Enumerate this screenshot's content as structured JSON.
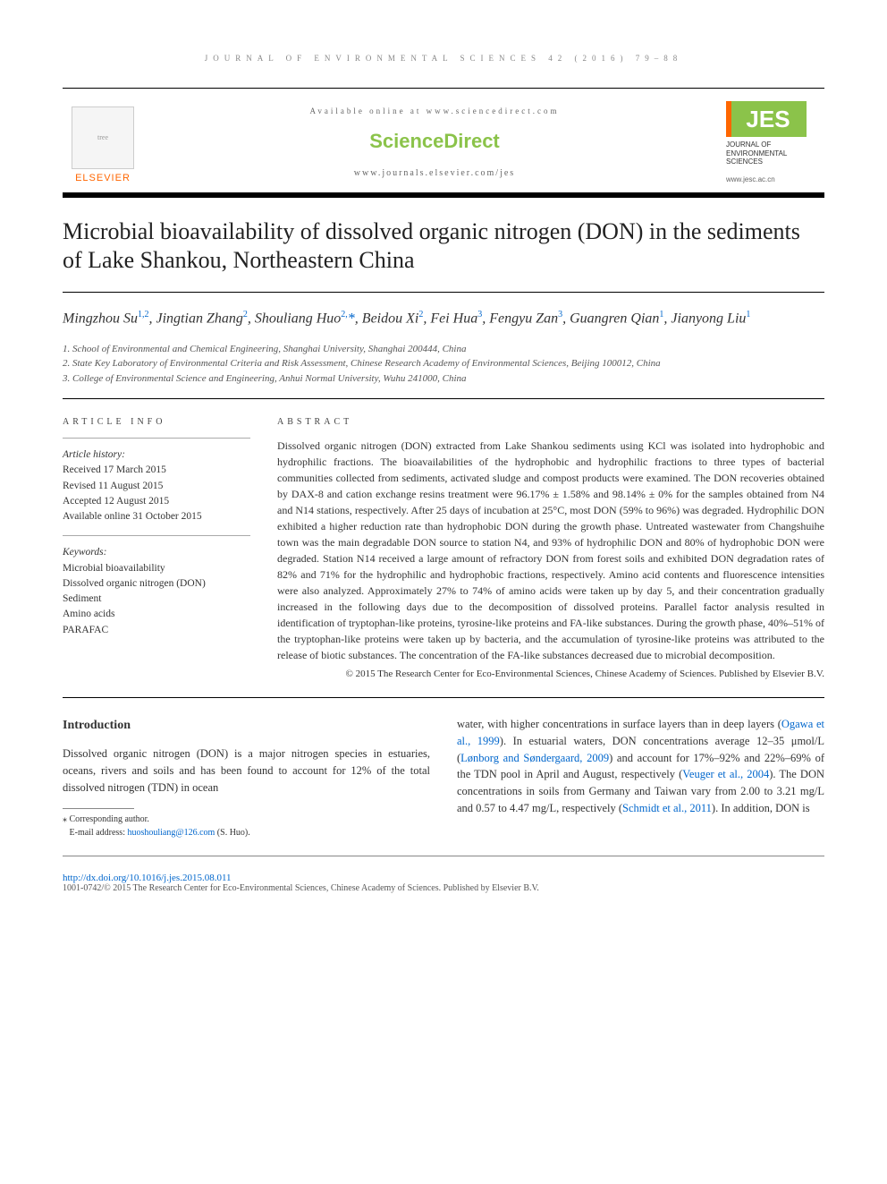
{
  "header": {
    "running_head": "JOURNAL OF ENVIRONMENTAL SCIENCES 42 (2016) 79–88",
    "available_online": "Available online at www.sciencedirect.com",
    "sciencedirect": "ScienceDirect",
    "journal_url": "www.journals.elsevier.com/jes",
    "elsevier_label": "ELSEVIER",
    "jes_label": "JES",
    "jes_subtitle": "JOURNAL OF ENVIRONMENTAL SCIENCES",
    "jes_url": "www.jesc.ac.cn"
  },
  "title": "Microbial bioavailability of dissolved organic nitrogen (DON) in the sediments of Lake Shankou, Northeastern China",
  "authors_html": "Mingzhou Su<sup>1,2</sup>, Jingtian Zhang<sup>2</sup>, Shouliang Huo<sup>2,</sup><span class='corr'>*</span>, Beidou Xi<sup>2</sup>, Fei Hua<sup>3</sup>, Fengyu Zan<sup>3</sup>, Guangren Qian<sup>1</sup>, Jianyong Liu<sup>1</sup>",
  "affiliations": [
    "1. School of Environmental and Chemical Engineering, Shanghai University, Shanghai 200444, China",
    "2. State Key Laboratory of Environmental Criteria and Risk Assessment, Chinese Research Academy of Environmental Sciences, Beijing 100012, China",
    "3. College of Environmental Science and Engineering, Anhui Normal University, Wuhu 241000, China"
  ],
  "article_info": {
    "label": "ARTICLE INFO",
    "history_hdr": "Article history:",
    "history": [
      "Received 17 March 2015",
      "Revised 11 August 2015",
      "Accepted 12 August 2015",
      "Available online 31 October 2015"
    ],
    "keywords_hdr": "Keywords:",
    "keywords": [
      "Microbial bioavailability",
      "Dissolved organic nitrogen (DON)",
      "Sediment",
      "Amino acids",
      "PARAFAC"
    ]
  },
  "abstract": {
    "label": "ABSTRACT",
    "text": "Dissolved organic nitrogen (DON) extracted from Lake Shankou sediments using KCl was isolated into hydrophobic and hydrophilic fractions. The bioavailabilities of the hydrophobic and hydrophilic fractions to three types of bacterial communities collected from sediments, activated sludge and compost products were examined. The DON recoveries obtained by DAX-8 and cation exchange resins treatment were 96.17% ± 1.58% and 98.14% ± 0% for the samples obtained from N4 and N14 stations, respectively. After 25 days of incubation at 25°C, most DON (59% to 96%) was degraded. Hydrophilic DON exhibited a higher reduction rate than hydrophobic DON during the growth phase. Untreated wastewater from Changshuihe town was the main degradable DON source to station N4, and 93% of hydrophilic DON and 80% of hydrophobic DON were degraded. Station N14 received a large amount of refractory DON from forest soils and exhibited DON degradation rates of 82% and 71% for the hydrophilic and hydrophobic fractions, respectively. Amino acid contents and fluorescence intensities were also analyzed. Approximately 27% to 74% of amino acids were taken up by day 5, and their concentration gradually increased in the following days due to the decomposition of dissolved proteins. Parallel factor analysis resulted in identification of tryptophan-like proteins, tyrosine-like proteins and FA-like substances. During the growth phase, 40%–51% of the tryptophan-like proteins were taken up by bacteria, and the accumulation of tyrosine-like proteins was attributed to the release of biotic substances. The concentration of the FA-like substances decreased due to microbial decomposition.",
    "copyright": "© 2015 The Research Center for Eco-Environmental Sciences, Chinese Academy of Sciences. Published by Elsevier B.V."
  },
  "intro": {
    "heading": "Introduction",
    "col1": "Dissolved organic nitrogen (DON) is a major nitrogen species in estuaries, oceans, rivers and soils and has been found to account for 12% of the total dissolved nitrogen (TDN) in ocean",
    "col2_pre": "water, with higher concentrations in surface layers than in deep layers (",
    "ref1": "Ogawa et al., 1999",
    "col2_a": "). In estuarial waters, DON concentrations average 12–35 μmol/L (",
    "ref2": "Lønborg and Søndergaard, 2009",
    "col2_b": ") and account for 17%–92% and 22%–69% of the TDN pool in April and August, respectively (",
    "ref3": "Veuger et al., 2004",
    "col2_c": "). The DON concentrations in soils from Germany and Taiwan vary from 2.00 to 3.21 mg/L and 0.57 to 4.47 mg/L, respectively (",
    "ref4": "Schmidt et al., 2011",
    "col2_d": "). In addition, DON is"
  },
  "footer": {
    "corr_label": "⁎ Corresponding author.",
    "email_label": "E-mail address: ",
    "email": "huoshouliang@126.com",
    "email_suffix": " (S. Huo).",
    "doi": "http://dx.doi.org/10.1016/j.jes.2015.08.011",
    "issn_copy": "1001-0742/© 2015 The Research Center for Eco-Environmental Sciences, Chinese Academy of Sciences. Published by Elsevier B.V."
  }
}
